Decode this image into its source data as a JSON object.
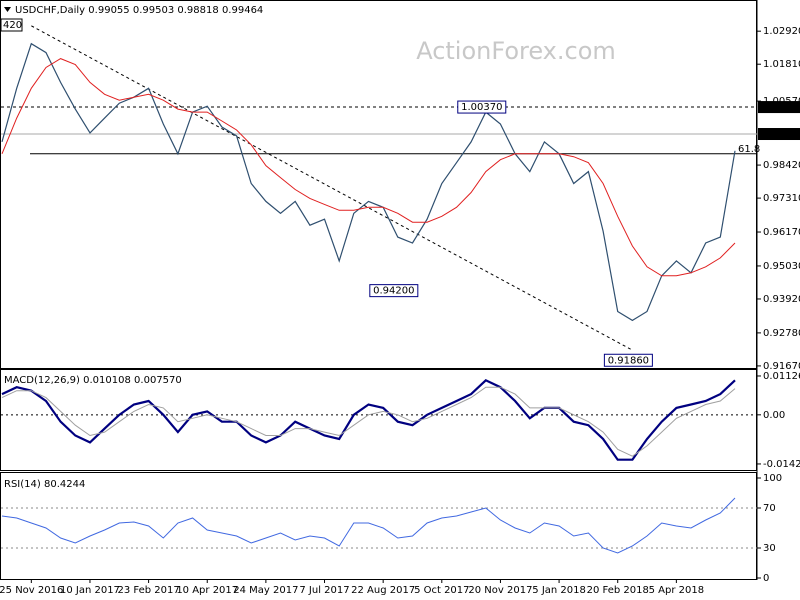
{
  "chart_data": [
    {
      "type": "line",
      "title": "USDCHF,Daily",
      "readout": [
        0.99055,
        0.99503,
        0.98818,
        0.99464
      ],
      "watermark": "ActionForex.com",
      "corner_label": "420",
      "ylim": [
        0.916,
        1.038
      ],
      "yticks": [
        {
          "value": 1.0292,
          "label": "1.02920"
        },
        {
          "value": 1.0181,
          "label": "1.01810"
        },
        {
          "value": 1.0057,
          "label": "1.00570"
        },
        {
          "value": 0.9842,
          "label": "0.98420"
        },
        {
          "value": 0.9731,
          "label": "0.97310"
        },
        {
          "value": 0.9617,
          "label": "0.96170"
        },
        {
          "value": 0.9503,
          "label": "0.95030"
        },
        {
          "value": 0.9392,
          "label": "0.93920"
        },
        {
          "value": 0.9278,
          "label": "0.92780"
        },
        {
          "value": 0.9167,
          "label": "0.91670"
        }
      ],
      "series": [
        {
          "color": "#2f4f6f",
          "width": 1.2,
          "values": [
            0.992,
            1.01,
            1.025,
            1.022,
            1.012,
            1.003,
            0.995,
            1.0,
            1.005,
            1.007,
            1.01,
            0.998,
            0.988,
            1.002,
            1.004,
            0.997,
            0.994,
            0.978,
            0.972,
            0.968,
            0.972,
            0.964,
            0.966,
            0.952,
            0.968,
            0.972,
            0.97,
            0.96,
            0.958,
            0.966,
            0.978,
            0.985,
            0.992,
            1.002,
            0.998,
            0.988,
            0.982,
            0.992,
            0.988,
            0.978,
            0.982,
            0.962,
            0.935,
            0.932,
            0.935,
            0.947,
            0.952,
            0.948,
            0.958,
            0.96,
            0.989
          ]
        },
        {
          "color": "#e02020",
          "width": 1,
          "values": [
            0.988,
            1.0,
            1.01,
            1.017,
            1.02,
            1.018,
            1.012,
            1.008,
            1.006,
            1.007,
            1.008,
            1.006,
            1.003,
            1.002,
            1.002,
            0.999,
            0.996,
            0.991,
            0.984,
            0.98,
            0.976,
            0.973,
            0.971,
            0.969,
            0.969,
            0.97,
            0.97,
            0.968,
            0.965,
            0.965,
            0.967,
            0.97,
            0.975,
            0.982,
            0.986,
            0.988,
            0.988,
            0.988,
            0.988,
            0.987,
            0.985,
            0.978,
            0.967,
            0.957,
            0.95,
            0.947,
            0.947,
            0.948,
            0.95,
            0.953,
            0.958
          ]
        }
      ],
      "trendline": {
        "x": [
          2,
          43
        ],
        "y": [
          1.031,
          0.922
        ]
      },
      "hlines": [
        {
          "value": 1.0037,
          "style": "dashed"
        },
        {
          "value": 0.99464,
          "style": "thin"
        },
        {
          "value": 0.988,
          "style": "solid",
          "label": "61.8"
        }
      ],
      "annotations": [
        {
          "index": 33,
          "value": 1.0037,
          "label": "1.00370"
        },
        {
          "index": 27,
          "value": 0.942,
          "label": "0.94200"
        },
        {
          "index": 43,
          "value": 0.9186,
          "label": "0.91860"
        }
      ],
      "price_flags": [
        {
          "value": 1.0037,
          "label": "1.00370"
        },
        {
          "value": 0.99464,
          "label": "0.99464"
        }
      ]
    },
    {
      "type": "line",
      "title": "MACD(12,26,9)",
      "readout": [
        0.010108,
        {
          "value": 0.00757,
          "label": "0.007570"
        }
      ],
      "ylim": [
        -0.016,
        0.013
      ],
      "yticks": [
        {
          "value": 0.011267,
          "label": "0.011267"
        },
        {
          "value": 0,
          "label": "0.00"
        },
        {
          "value": -0.014247,
          "label": "-0.014247"
        }
      ],
      "zero_line": true,
      "series": [
        {
          "color": "#000080",
          "width": 2.2,
          "values": [
            0.006,
            0.008,
            0.007,
            0.004,
            -0.002,
            -0.006,
            -0.008,
            -0.004,
            0.0,
            0.003,
            0.004,
            0.0,
            -0.005,
            0.0,
            0.001,
            -0.002,
            -0.002,
            -0.006,
            -0.008,
            -0.006,
            -0.002,
            -0.004,
            -0.006,
            -0.007,
            0.0,
            0.003,
            0.002,
            -0.002,
            -0.003,
            0.0,
            0.002,
            0.004,
            0.006,
            0.01,
            0.008,
            0.004,
            -0.001,
            0.002,
            0.002,
            -0.002,
            -0.003,
            -0.007,
            -0.013,
            -0.013,
            -0.007,
            -0.002,
            0.002,
            0.003,
            0.004,
            0.006,
            0.01
          ]
        },
        {
          "color": "#a0a0a0",
          "width": 1,
          "values": [
            0.005,
            0.007,
            0.007,
            0.005,
            0.001,
            -0.003,
            -0.006,
            -0.005,
            -0.002,
            0.001,
            0.003,
            0.002,
            -0.002,
            -0.001,
            0.0,
            -0.001,
            -0.002,
            -0.004,
            -0.006,
            -0.006,
            -0.004,
            -0.004,
            -0.005,
            -0.006,
            -0.003,
            0.0,
            0.001,
            0.0,
            -0.002,
            -0.001,
            0.001,
            0.003,
            0.005,
            0.008,
            0.008,
            0.006,
            0.002,
            0.002,
            0.002,
            0.0,
            -0.002,
            -0.005,
            -0.01,
            -0.012,
            -0.009,
            -0.005,
            -0.001,
            0.001,
            0.003,
            0.004,
            0.0076
          ]
        }
      ]
    },
    {
      "type": "line",
      "title": "RSI(14)",
      "readout": [
        80.4244
      ],
      "ylim": [
        0,
        105
      ],
      "yticks": [
        0,
        30,
        70,
        100
      ],
      "levels": [
        30,
        70
      ],
      "categories": [
        null,
        null,
        "25 Nov 2016",
        null,
        null,
        null,
        "10 Jan 2017",
        null,
        null,
        null,
        "23 Feb 2017",
        null,
        null,
        null,
        "10 Apr 2017",
        null,
        null,
        null,
        "24 May 2017",
        null,
        null,
        null,
        "7 Jul 2017",
        null,
        null,
        null,
        "22 Aug 2017",
        null,
        null,
        null,
        "5 Oct 2017",
        null,
        null,
        null,
        "20 Nov 2017",
        null,
        null,
        null,
        "5 Jan 2018",
        null,
        null,
        null,
        "20 Feb 2018",
        null,
        null,
        null,
        "5 Apr 2018",
        null,
        null,
        null,
        null
      ],
      "series": [
        {
          "color": "#4169e1",
          "width": 1,
          "values": [
            62,
            60,
            55,
            50,
            40,
            35,
            42,
            48,
            55,
            56,
            52,
            40,
            55,
            60,
            48,
            45,
            42,
            35,
            40,
            45,
            38,
            42,
            40,
            32,
            55,
            55,
            50,
            40,
            42,
            55,
            60,
            62,
            66,
            70,
            58,
            50,
            45,
            55,
            52,
            42,
            45,
            30,
            25,
            32,
            42,
            55,
            52,
            50,
            58,
            65,
            80
          ]
        }
      ]
    }
  ]
}
